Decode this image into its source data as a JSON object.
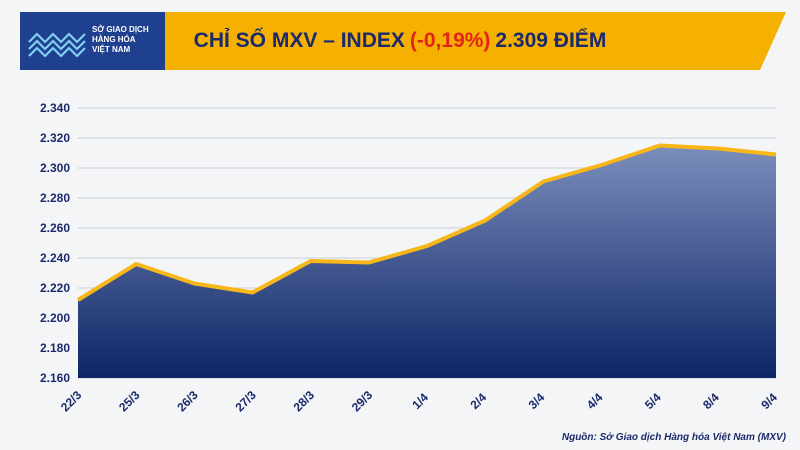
{
  "header": {
    "title_prefix": "CHỈ SỐ MXV – INDEX",
    "change": "(-0,19%)",
    "title_suffix": "2.309 ĐIỂM"
  },
  "logo": {
    "line1": "SỞ GIAO DỊCH",
    "line2": "HÀNG HÓA",
    "line3": "VIỆT NAM"
  },
  "source": "Nguồn: Sở Giao dịch Hàng hóa Việt Nam (MXV)",
  "colors": {
    "banner": "#f6b000",
    "title_text": "#1b2a6b",
    "change_text": "#e3241b",
    "area_top": "#7b8ebc",
    "area_bottom": "#0d2466",
    "line": "#f7b718",
    "logo_bg": "#1f3f8f"
  },
  "chart_data": {
    "type": "area",
    "title": "CHỈ SỐ MXV – INDEX (-0,19%) 2.309 ĐIỂM",
    "xlabel": "",
    "ylabel": "",
    "categories": [
      "22/3",
      "25/3",
      "26/3",
      "27/3",
      "28/3",
      "29/3",
      "1/4",
      "2/4",
      "3/4",
      "4/4",
      "5/4",
      "8/4",
      "9/4"
    ],
    "values": [
      2212,
      2236,
      2223,
      2217,
      2238,
      2237,
      2248,
      2265,
      2291,
      2302,
      2315,
      2313,
      2309
    ],
    "ylim": [
      2160,
      2340
    ],
    "yticks": [
      2160,
      2180,
      2200,
      2220,
      2240,
      2260,
      2280,
      2300,
      2320,
      2340
    ],
    "ytick_labels": [
      "2.160",
      "2.180",
      "2.200",
      "2.220",
      "2.240",
      "2.260",
      "2.280",
      "2.300",
      "2.320",
      "2.340"
    ],
    "grid": true,
    "legend": "none"
  }
}
